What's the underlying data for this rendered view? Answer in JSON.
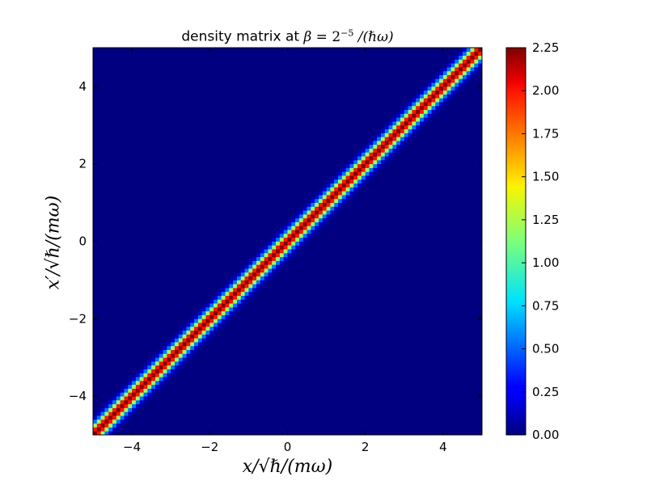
{
  "chart_data": {
    "type": "heatmap",
    "title_prefix": "density matrix at ",
    "title_math": {
      "symbol": "β",
      "eq": " = ",
      "base": "2",
      "exponent": "−5",
      "suffix": " /(ℏω)"
    },
    "xlabel": "x/√ℏ/(mω)",
    "ylabel": "x′/√ℏ/(mω)",
    "xlim": [
      -5,
      5
    ],
    "ylim": [
      -5,
      5
    ],
    "x_ticks": [
      {
        "value": -4,
        "label": "−4"
      },
      {
        "value": -2,
        "label": "−2"
      },
      {
        "value": 0,
        "label": "0"
      },
      {
        "value": 2,
        "label": "2"
      },
      {
        "value": 4,
        "label": "4"
      }
    ],
    "y_ticks": [
      {
        "value": -4,
        "label": "−4"
      },
      {
        "value": -2,
        "label": "−2"
      },
      {
        "value": 0,
        "label": "0"
      },
      {
        "value": 2,
        "label": "2"
      },
      {
        "value": 4,
        "label": "4"
      }
    ],
    "colormap": "jet",
    "colorbar": {
      "min": 0.0,
      "max": 2.25,
      "ticks": [
        {
          "value": 0.0,
          "label": "0.00"
        },
        {
          "value": 0.25,
          "label": "0.25"
        },
        {
          "value": 0.5,
          "label": "0.50"
        },
        {
          "value": 0.75,
          "label": "0.75"
        },
        {
          "value": 1.0,
          "label": "1.00"
        },
        {
          "value": 1.25,
          "label": "1.25"
        },
        {
          "value": 1.5,
          "label": "1.50"
        },
        {
          "value": 1.75,
          "label": "1.75"
        },
        {
          "value": 2.0,
          "label": "2.00"
        },
        {
          "value": 2.25,
          "label": "2.25"
        }
      ]
    },
    "model": {
      "beta": 0.03125,
      "grid_points": 100
    },
    "grid": false
  }
}
